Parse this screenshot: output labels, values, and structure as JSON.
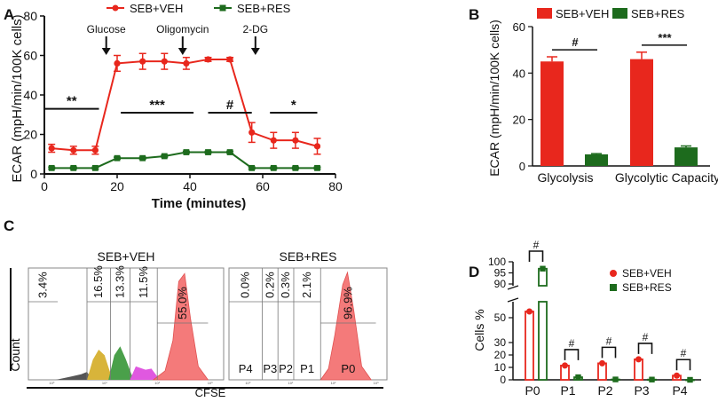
{
  "panels": {
    "a": "A",
    "b": "B",
    "c": "C",
    "d": "D"
  },
  "colors": {
    "veh": "#e8271d",
    "res": "#1d6b1d",
    "black": "#111111",
    "hist_fill": "#f47a7a",
    "hist_dark": "#555555",
    "hist_yellow": "#d8b43a",
    "hist_green": "#4aa04a",
    "hist_magenta": "#e058e0"
  },
  "chart_data": [
    {
      "id": "A",
      "type": "line",
      "title": "",
      "xlabel": "Time (minutes)",
      "ylabel": "ECAR (mpH/min/100K cells)",
      "xlim": [
        0,
        80
      ],
      "ylim": [
        0,
        80
      ],
      "xticks": [
        0,
        20,
        40,
        60,
        80
      ],
      "yticks": [
        0,
        20,
        40,
        60,
        80
      ],
      "legend": [
        "SEB+VEH",
        "SEB+RES"
      ],
      "series": [
        {
          "name": "SEB+VEH",
          "color_key": "veh",
          "x": [
            2,
            8,
            14,
            20,
            27,
            33,
            39,
            45,
            51,
            57,
            63,
            69,
            75
          ],
          "y": [
            13,
            12,
            12,
            56,
            57,
            57,
            56,
            58,
            58,
            21,
            17,
            17,
            14
          ],
          "err": [
            2,
            2,
            2,
            4,
            4,
            4,
            3,
            1,
            1,
            5,
            4,
            4,
            4
          ]
        },
        {
          "name": "SEB+RES",
          "color_key": "res",
          "x": [
            2,
            8,
            14,
            20,
            27,
            33,
            39,
            45,
            51,
            57,
            63,
            69,
            75
          ],
          "y": [
            3,
            3,
            3,
            8,
            8,
            9,
            11,
            11,
            11,
            3,
            3,
            3,
            3
          ],
          "err": [
            0.5,
            0.5,
            0.5,
            0.5,
            0.5,
            0.5,
            0.5,
            0.5,
            0.5,
            0.5,
            0.5,
            0.5,
            0.5
          ]
        }
      ],
      "injections": [
        {
          "label": "Glucose",
          "x": 17
        },
        {
          "label": "Oligomycin",
          "x": 38
        },
        {
          "label": "2-DG",
          "x": 58
        }
      ],
      "significance": [
        {
          "label": "**",
          "x1": 0,
          "x2": 15,
          "y": 33
        },
        {
          "label": "***",
          "x1": 21,
          "x2": 41,
          "y": 31
        },
        {
          "label": "#",
          "x1": 45,
          "x2": 57,
          "y": 31
        },
        {
          "label": "*",
          "x1": 62,
          "x2": 75,
          "y": 31
        }
      ]
    },
    {
      "id": "B",
      "type": "bar",
      "title": "",
      "xlabel": "",
      "ylabel": "ECAR (mpH/min/100K cells)",
      "ylim": [
        0,
        60
      ],
      "yticks": [
        0,
        20,
        40,
        60
      ],
      "categories": [
        "Glycolysis",
        "Glycolytic Capacity"
      ],
      "legend": [
        "SEB+VEH",
        "SEB+RES"
      ],
      "series": [
        {
          "name": "SEB+VEH",
          "color_key": "veh",
          "values": [
            45,
            46
          ],
          "err": [
            2,
            3
          ]
        },
        {
          "name": "SEB+RES",
          "color_key": "res",
          "values": [
            5,
            8
          ],
          "err": [
            0.3,
            0.6
          ]
        }
      ],
      "significance": [
        {
          "label": "#",
          "category": 0,
          "y": 50
        },
        {
          "label": "***",
          "category": 1,
          "y": 52
        }
      ]
    },
    {
      "id": "C",
      "type": "area",
      "xlabel": "CFSE",
      "ylabel": "Count",
      "panels": [
        {
          "title": "SEB+VEH",
          "gate_percents": [
            "3.4%",
            "16.5%",
            "13.3%",
            "11.5%",
            "55.0%"
          ],
          "gate_labels": []
        },
        {
          "title": "SEB+RES",
          "gate_percents": [
            "0.0%",
            "0.2%",
            "0.3%",
            "2.1%",
            "96.9%"
          ],
          "gate_labels": [
            "P4",
            "P3",
            "P2",
            "P1",
            "P0"
          ]
        }
      ],
      "tick_labels": [
        "10⁰",
        "10¹",
        "10²",
        "10³"
      ]
    },
    {
      "id": "D",
      "type": "bar",
      "xlabel": "",
      "ylabel": "Cells %",
      "categories": [
        "P0",
        "P1",
        "P2",
        "P3",
        "P4"
      ],
      "yticks_lower": [
        0,
        10,
        20,
        30,
        50
      ],
      "yticks_upper": [
        90,
        95,
        100
      ],
      "legend": [
        "SEB+VEH",
        "SEB+RES"
      ],
      "series": [
        {
          "name": "SEB+VEH",
          "color_key": "veh",
          "values": [
            55,
            11.5,
            13.3,
            16.5,
            3.4
          ]
        },
        {
          "name": "SEB+RES",
          "color_key": "res",
          "values": [
            96.9,
            2.1,
            0.3,
            0.2,
            0.0
          ]
        }
      ],
      "significance": [
        "#",
        "#",
        "#",
        "#",
        "#"
      ]
    }
  ]
}
